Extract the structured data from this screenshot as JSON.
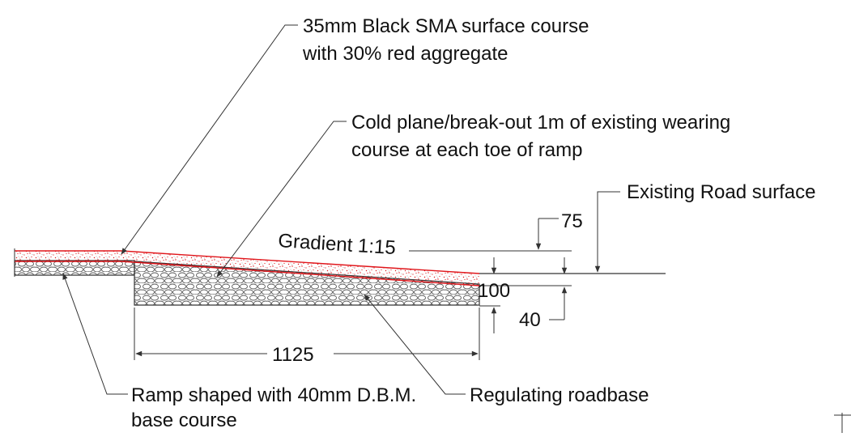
{
  "labels": {
    "surface_course_line1": "35mm Black SMA surface course",
    "surface_course_line2": "with 30% red aggregate",
    "cold_plane_line1": "Cold plane/break-out 1m of existing wearing",
    "cold_plane_line2": "course at each toe of ramp",
    "existing_road": "Existing Road surface",
    "gradient": "Gradient 1:15",
    "ramp_base_line1": "Ramp shaped with 40mm D.B.M.",
    "ramp_base_line2": "base course",
    "regulating": "Regulating roadbase"
  },
  "dimensions": {
    "ramp_height": "75",
    "regulating_depth": "100",
    "base_depth": "40",
    "ramp_length": "1125"
  },
  "colors": {
    "surface_red": "#e0161b",
    "linework": "#333333",
    "text": "#111111"
  }
}
